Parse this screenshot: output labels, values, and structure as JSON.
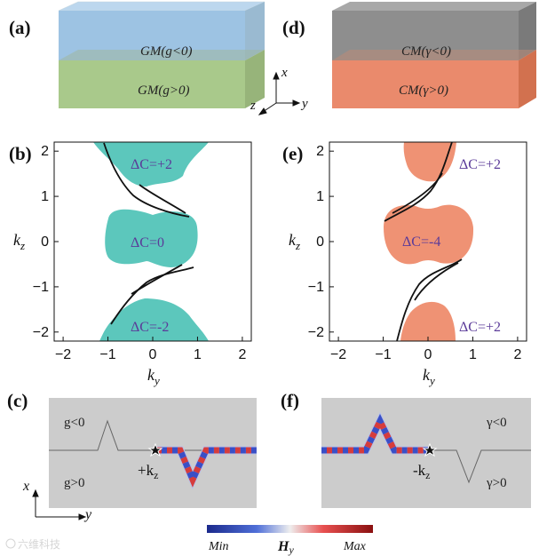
{
  "figure": {
    "panels": {
      "a": {
        "tag": "(a)",
        "top_label": "GM(g<0)",
        "bottom_label": "GM(g>0)"
      },
      "d": {
        "tag": "(d)",
        "top_label": "CM(γ<0)",
        "bottom_label": "CM(γ>0)"
      },
      "b": {
        "tag": "(b)",
        "xlabel": "k",
        "xsub": "y",
        "ylabel": "k",
        "ysub": "z",
        "regions": [
          "ΔC=+2",
          "ΔC=0",
          "ΔC=-2"
        ]
      },
      "e": {
        "tag": "(e)",
        "xlabel": "k",
        "xsub": "y",
        "ylabel": "k",
        "ysub": "z",
        "regions": [
          "ΔC=+2",
          "ΔC=-4",
          "ΔC=+2"
        ]
      },
      "c": {
        "tag": "(c)",
        "upper": "g<0",
        "lower": "g>0",
        "source_label": "+k",
        "source_sub": "z"
      },
      "f": {
        "tag": "(f)",
        "upper": "γ<0",
        "lower": "γ>0",
        "source_label": "-k",
        "source_sub": "z"
      }
    },
    "axes3d": {
      "x": "x",
      "y": "y",
      "z": "z"
    },
    "axes2d": {
      "x": "x",
      "y": "y"
    },
    "colorbar": {
      "min": "Min",
      "max": "Max",
      "label": "H",
      "label_sub": "y"
    },
    "watermark": "六维科技",
    "colors": {
      "gm_top": "#9dc3e3",
      "gm_bottom": "#a9c98b",
      "cm_top": "#8e8e8e",
      "cm_bottom": "#ea8a6c",
      "teal": "#5cc7bc",
      "salmon": "#ef9274"
    }
  },
  "chart_data": [
    {
      "type": "scatter",
      "title": "(b)",
      "xlabel": "k_y",
      "ylabel": "k_z",
      "xlim": [
        -2.2,
        2.2
      ],
      "ylim": [
        -2.2,
        2.2
      ],
      "xticks": [
        "−2",
        "−1",
        "0",
        "1",
        "2"
      ],
      "yticks": [
        "−2",
        "−1",
        "0",
        "1",
        "2"
      ],
      "annotations": [
        "ΔC=+2",
        "ΔC=0",
        "ΔC=-2"
      ]
    },
    {
      "type": "scatter",
      "title": "(e)",
      "xlabel": "k_y",
      "ylabel": "k_z",
      "xlim": [
        -2.2,
        2.2
      ],
      "ylim": [
        -2.2,
        2.2
      ],
      "xticks": [
        "−2",
        "−1",
        "0",
        "1",
        "2"
      ],
      "yticks": [
        "−2",
        "−1",
        "0",
        "1",
        "2"
      ],
      "annotations": [
        "ΔC=+2",
        "ΔC=-4",
        "ΔC=+2"
      ]
    }
  ]
}
